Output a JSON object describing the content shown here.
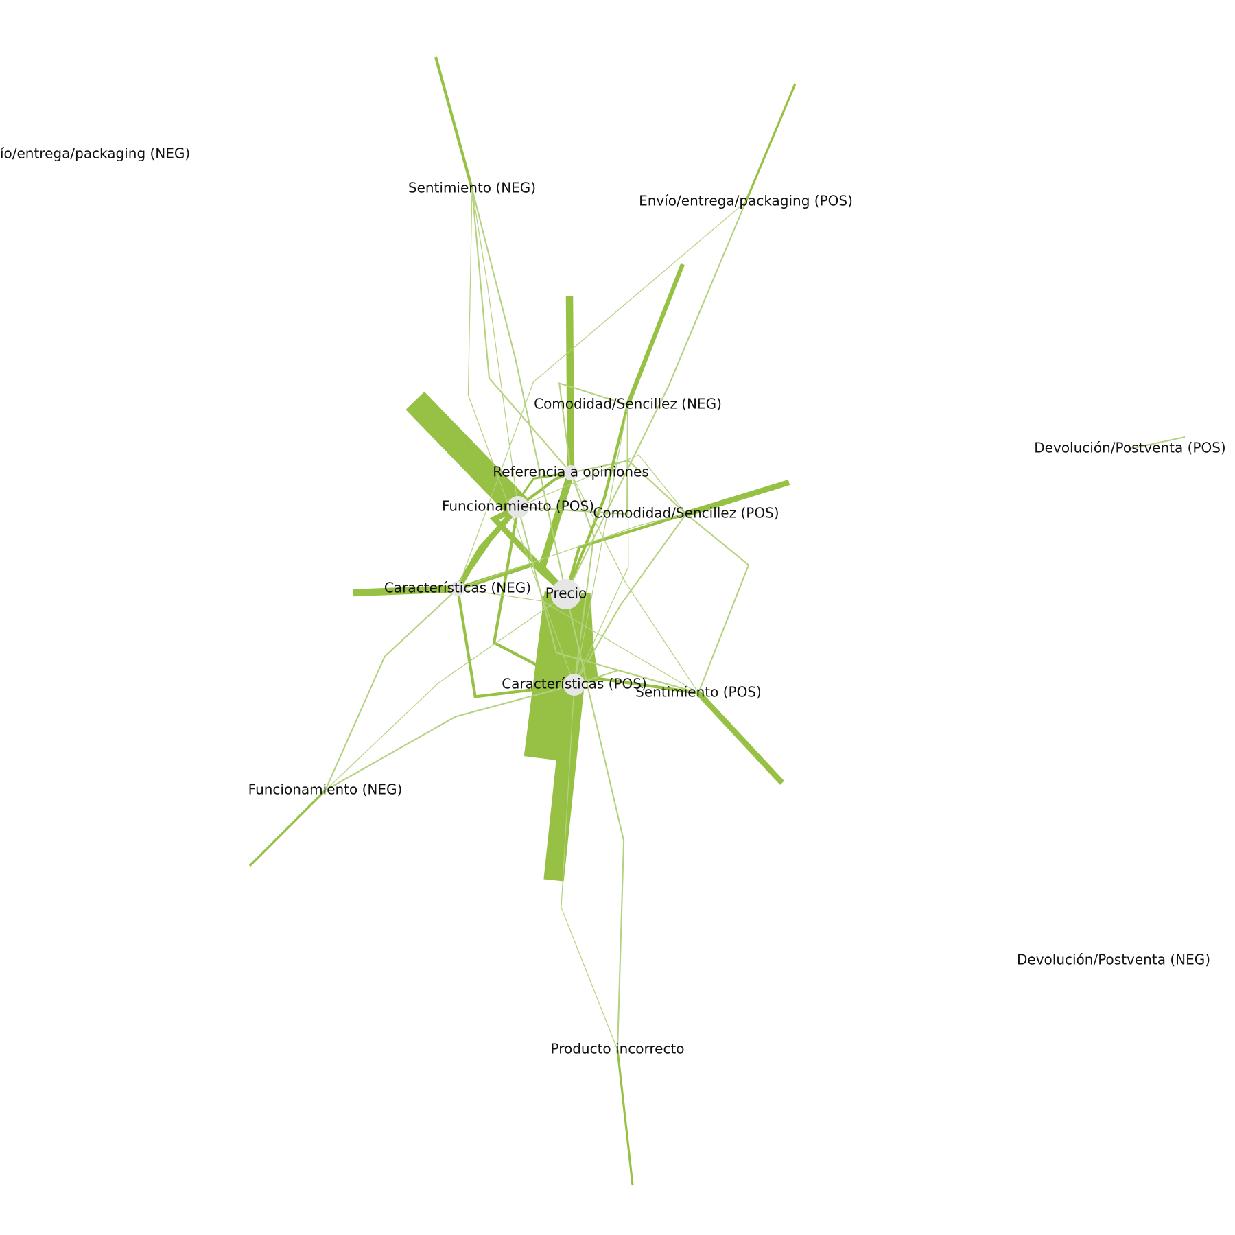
{
  "colors": {
    "edge_strong": "#97c144",
    "edge_light": "#b4d27f",
    "node_fill": "#e6e6e6",
    "label": "#111111",
    "background": "#ffffff"
  },
  "nodes": [
    {
      "id": "precio",
      "label": "Precio",
      "size": "large"
    },
    {
      "id": "caracteristicas_pos",
      "label": "Características (POS)",
      "size": "medium"
    },
    {
      "id": "caracteristicas_neg",
      "label": "Características (NEG)",
      "size": "small"
    },
    {
      "id": "funcionamiento_pos",
      "label": "Funcionamiento (POS)",
      "size": "medium"
    },
    {
      "id": "funcionamiento_neg",
      "label": "Funcionamiento (NEG)",
      "size": "tiny"
    },
    {
      "id": "referencia",
      "label": "Referencia a opiniones",
      "size": "small"
    },
    {
      "id": "comodidad_neg",
      "label": "Comodidad/Sencillez (NEG)",
      "size": "tiny"
    },
    {
      "id": "comodidad_pos",
      "label": "Comodidad/Sencillez (POS)",
      "size": "tiny"
    },
    {
      "id": "sentimiento_pos",
      "label": "Sentimiento (POS)",
      "size": "tiny"
    },
    {
      "id": "sentimiento_neg",
      "label": "Sentimiento (NEG)",
      "size": "tiny"
    },
    {
      "id": "envio_pos",
      "label": "Envío/entrega/packaging (POS)",
      "size": "tiny"
    },
    {
      "id": "envio_neg",
      "label": "Envío/entrega/packaging (NEG)",
      "size": "tiny"
    },
    {
      "id": "devolucion_pos",
      "label": "Devolución/Postventa (POS)",
      "size": "tiny"
    },
    {
      "id": "devolucion_neg",
      "label": "Devolución/Postventa (NEG)",
      "size": "tiny"
    },
    {
      "id": "producto_incorrecto",
      "label": "Producto incorrecto",
      "size": "tiny"
    }
  ],
  "edges": [
    {
      "from": "precio",
      "to": "precio",
      "weight": 30
    },
    {
      "from": "precio",
      "to": "caracteristicas_pos",
      "weight": 34
    },
    {
      "from": "caracteristicas_pos",
      "to": "caracteristicas_pos",
      "weight": 14
    },
    {
      "from": "funcionamiento_pos",
      "to": "funcionamiento_pos",
      "weight": 18
    },
    {
      "from": "funcionamiento_pos",
      "to": "precio",
      "weight": 4
    },
    {
      "from": "funcionamiento_pos",
      "to": "caracteristicas_neg",
      "weight": 4
    },
    {
      "from": "funcionamiento_pos",
      "to": "caracteristicas_pos",
      "weight": 2
    },
    {
      "from": "funcionamiento_pos",
      "to": "referencia",
      "weight": 2
    },
    {
      "from": "referencia",
      "to": "referencia",
      "weight": 5
    },
    {
      "from": "referencia",
      "to": "precio",
      "weight": 5
    },
    {
      "from": "referencia",
      "to": "caracteristicas_neg",
      "weight": 1.5
    },
    {
      "from": "referencia",
      "to": "comodidad_pos",
      "weight": 1
    },
    {
      "from": "referencia",
      "to": "caracteristicas_pos",
      "weight": 1
    },
    {
      "from": "comodidad_neg",
      "to": "comodidad_neg",
      "weight": 3
    },
    {
      "from": "comodidad_neg",
      "to": "precio",
      "weight": 2
    },
    {
      "from": "comodidad_neg",
      "to": "referencia",
      "weight": 1
    },
    {
      "from": "comodidad_neg",
      "to": "funcionamiento_pos",
      "weight": 1
    },
    {
      "from": "comodidad_pos",
      "to": "comodidad_pos",
      "weight": 4
    },
    {
      "from": "comodidad_pos",
      "to": "precio",
      "weight": 2
    },
    {
      "from": "comodidad_pos",
      "to": "sentimiento_pos",
      "weight": 1
    },
    {
      "from": "comodidad_pos",
      "to": "caracteristicas_pos",
      "weight": 1
    },
    {
      "from": "caracteristicas_neg",
      "to": "caracteristicas_neg",
      "weight": 5
    },
    {
      "from": "caracteristicas_neg",
      "to": "precio",
      "weight": 3
    },
    {
      "from": "caracteristicas_neg",
      "to": "caracteristicas_pos",
      "weight": 2
    },
    {
      "from": "caracteristicas_neg",
      "to": "funcionamiento_neg",
      "weight": 1
    },
    {
      "from": "caracteristicas_pos",
      "to": "funcionamiento_neg",
      "weight": 1
    },
    {
      "from": "sentimiento_pos",
      "to": "sentimiento_pos",
      "weight": 4
    },
    {
      "from": "sentimiento_pos",
      "to": "precio",
      "weight": 2
    },
    {
      "from": "sentimiento_pos",
      "to": "caracteristicas_pos",
      "weight": 1
    },
    {
      "from": "sentimiento_pos",
      "to": "funcionamiento_pos",
      "weight": 1
    },
    {
      "from": "sentimiento_neg",
      "to": "sentimiento_neg",
      "weight": 2
    },
    {
      "from": "sentimiento_neg",
      "to": "referencia",
      "weight": 1
    },
    {
      "from": "sentimiento_neg",
      "to": "precio",
      "weight": 1
    },
    {
      "from": "envio_pos",
      "to": "envio_pos",
      "weight": 1.5
    },
    {
      "from": "envio_pos",
      "to": "precio",
      "weight": 1
    },
    {
      "from": "funcionamiento_neg",
      "to": "funcionamiento_neg",
      "weight": 1.5
    },
    {
      "from": "producto_incorrecto",
      "to": "producto_incorrecto",
      "weight": 1.5
    },
    {
      "from": "producto_incorrecto",
      "to": "precio",
      "weight": 1
    },
    {
      "from": "devolucion_pos",
      "to": "devolucion_pos",
      "weight": 1
    }
  ]
}
